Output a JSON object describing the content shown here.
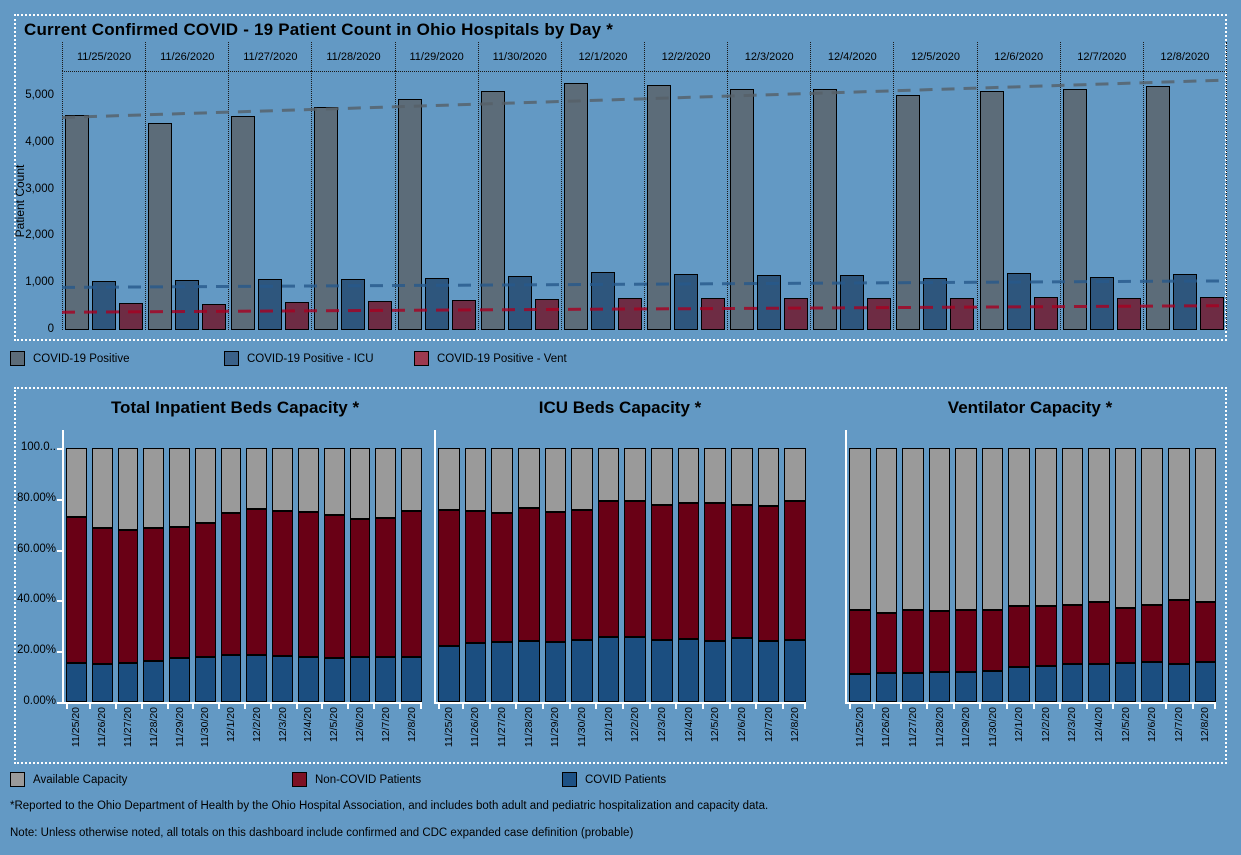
{
  "chart_data": [
    {
      "type": "bar",
      "title": "Current Confirmed COVID - 19 Patient Count in Ohio Hospitals by Day *",
      "xlabel": "",
      "ylabel": "Patient Count",
      "ylim": [
        0,
        5000
      ],
      "yticks": [
        0,
        1000,
        2000,
        3000,
        4000,
        5000
      ],
      "ytick_labels": [
        "0",
        "1,000",
        "2,000",
        "3,000",
        "4,000",
        "5,000"
      ],
      "categories": [
        "11/25/2020",
        "11/26/2020",
        "11/27/2020",
        "11/28/2020",
        "11/29/2020",
        "11/30/2020",
        "12/1/2020",
        "12/2/2020",
        "12/3/2020",
        "12/4/2020",
        "12/5/2020",
        "12/6/2020",
        "12/7/2020",
        "12/8/2020"
      ],
      "series": [
        {
          "name": "COVID-19 Positive",
          "color": "#5c6c79",
          "values": [
            4590,
            4420,
            4570,
            4760,
            4930,
            5100,
            5270,
            5240,
            5160,
            5150,
            5020,
            5110,
            5150,
            5210
          ]
        },
        {
          "name": "COVID-19 Positive - ICU",
          "color": "#2e567d",
          "values": [
            1050,
            1080,
            1090,
            1090,
            1110,
            1150,
            1240,
            1190,
            1170,
            1170,
            1120,
            1210,
            1140,
            1190
          ]
        },
        {
          "name": "COVID-19 Positive - Vent",
          "color": "#6e2c44",
          "values": [
            570,
            560,
            590,
            630,
            645,
            660,
            680,
            680,
            685,
            680,
            680,
            710,
            690,
            700
          ]
        }
      ],
      "trend_lines": [
        {
          "series": "COVID-19 Positive",
          "color": "#566068",
          "start": 4540,
          "end": 5340
        },
        {
          "series": "COVID-19 Positive - ICU",
          "color": "#27598b",
          "start": 910,
          "end": 1050
        },
        {
          "series": "COVID-19 Positive - Vent",
          "color": "#a80021",
          "start": 380,
          "end": 520
        }
      ],
      "legend": [
        "COVID-19 Positive",
        "COVID-19 Positive - ICU",
        "COVID-19 Positive - Vent"
      ],
      "legend_colors": [
        "#5c6c79",
        "#3a6189",
        "#9d3950"
      ],
      "legend_position": "bottom",
      "grid": "dotted column separators"
    },
    {
      "type": "stacked-bar-percent",
      "title": "Total Inpatient Beds Capacity *",
      "categories": [
        "11/25/20",
        "11/26/20",
        "11/27/20",
        "11/28/20",
        "11/29/20",
        "11/30/20",
        "12/1/20",
        "12/2/20",
        "12/3/20",
        "12/4/20",
        "12/5/20",
        "12/6/20",
        "12/7/20",
        "12/8/20"
      ],
      "ytick_labels": [
        "0.00%",
        "20.00%",
        "40.00%",
        "60.00%",
        "80.00%",
        "100.0.."
      ],
      "yticks": [
        0,
        20,
        40,
        60,
        80,
        100
      ],
      "series": [
        {
          "name": "COVID Patients",
          "color": "#1b4e80",
          "values": [
            15.4,
            15.0,
            15.4,
            16.0,
            17.3,
            17.9,
            18.3,
            18.3,
            17.9,
            17.9,
            17.3,
            17.9,
            17.9,
            17.9
          ]
        },
        {
          "name": "Non-COVID Patients",
          "color": "#690015",
          "values": [
            57.6,
            53.4,
            52.3,
            52.4,
            51.5,
            52.7,
            56.2,
            57.6,
            57.2,
            56.9,
            56.5,
            54.0,
            54.4,
            57.3
          ]
        },
        {
          "name": "Available Capacity",
          "color": "#9a9a9a",
          "values": [
            27.0,
            31.6,
            32.3,
            31.6,
            31.2,
            29.4,
            25.5,
            24.1,
            24.9,
            25.2,
            26.2,
            28.1,
            27.7,
            24.8
          ]
        }
      ]
    },
    {
      "type": "stacked-bar-percent",
      "title": "ICU Beds Capacity *",
      "categories": [
        "11/25/20",
        "11/26/20",
        "11/27/20",
        "11/28/20",
        "11/29/20",
        "11/30/20",
        "12/1/20",
        "12/2/20",
        "12/3/20",
        "12/4/20",
        "12/5/20",
        "12/6/20",
        "12/7/20",
        "12/8/20"
      ],
      "yticks": [
        0,
        20,
        40,
        60,
        80,
        100
      ],
      "series": [
        {
          "name": "COVID Patients",
          "color": "#1b4e80",
          "values": [
            22.2,
            23.1,
            23.5,
            23.8,
            23.8,
            24.5,
            25.6,
            25.4,
            24.5,
            24.7,
            24.1,
            25.0,
            24.1,
            24.5
          ]
        },
        {
          "name": "Non-COVID Patients",
          "color": "#690015",
          "values": [
            53.6,
            52.3,
            51.0,
            52.6,
            51.0,
            51.3,
            53.4,
            53.8,
            53.2,
            53.5,
            54.1,
            52.7,
            53.2,
            54.7
          ]
        },
        {
          "name": "Available Capacity",
          "color": "#9a9a9a",
          "values": [
            24.2,
            24.6,
            25.5,
            23.6,
            25.2,
            24.2,
            21.0,
            20.8,
            22.3,
            21.8,
            21.8,
            22.3,
            22.7,
            20.8
          ]
        }
      ]
    },
    {
      "type": "stacked-bar-percent",
      "title": "Ventilator Capacity *",
      "categories": [
        "11/25/20",
        "11/26/20",
        "11/27/20",
        "11/28/20",
        "11/29/20",
        "11/30/20",
        "12/1/20",
        "12/2/20",
        "12/3/20",
        "12/4/20",
        "12/5/20",
        "12/6/20",
        "12/7/20",
        "12/8/20"
      ],
      "yticks": [
        0,
        20,
        40,
        60,
        80,
        100
      ],
      "series": [
        {
          "name": "COVID Patients",
          "color": "#1b4e80",
          "values": [
            10.9,
            11.3,
            11.5,
            11.8,
            11.8,
            12.4,
            13.8,
            14.1,
            15.0,
            15.0,
            15.4,
            15.8,
            15.1,
            15.6
          ]
        },
        {
          "name": "Non-COVID Patients",
          "color": "#690015",
          "values": [
            25.4,
            23.9,
            24.7,
            24.1,
            24.4,
            23.8,
            24.0,
            23.7,
            23.1,
            24.5,
            21.8,
            22.5,
            25.0,
            23.6
          ]
        },
        {
          "name": "Available Capacity",
          "color": "#9a9a9a",
          "values": [
            63.7,
            64.8,
            63.8,
            64.1,
            63.8,
            63.8,
            62.2,
            62.2,
            61.9,
            60.5,
            62.8,
            61.7,
            59.9,
            60.8
          ]
        }
      ]
    }
  ],
  "capacity_legend": {
    "labels": [
      "Available Capacity",
      "Non-COVID Patients",
      "COVID Patients"
    ],
    "colors": [
      "#9a9a9a",
      "#7d1024",
      "#1d5185"
    ]
  },
  "footnotes": [
    "*Reported to the Ohio Department of Health by the Ohio Hospital Association, and includes both adult and pediatric hospitalization and capacity data.",
    "Note: Unless otherwise noted, all totals on this dashboard include confirmed and CDC expanded case definition (probable)"
  ]
}
